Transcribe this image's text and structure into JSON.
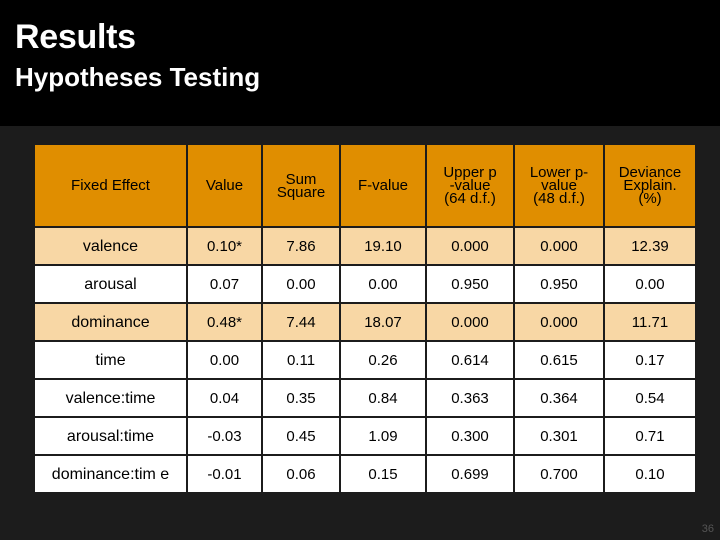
{
  "slide": {
    "title": "Results",
    "subtitle": "Hypotheses Testing",
    "page_number": "36"
  },
  "table": {
    "headers": [
      [
        "Fixed Effect"
      ],
      [
        "Value"
      ],
      [
        "Sum",
        "Square"
      ],
      [
        "F-value"
      ],
      [
        "Upper p",
        "-value",
        "(64 d.f.)"
      ],
      [
        "Lower p-",
        "value",
        "(48 d.f.)"
      ],
      [
        "Deviance",
        "Explain.",
        "(%)"
      ]
    ],
    "rows": [
      [
        "valence",
        "0.10*",
        "7.86",
        "19.10",
        "0.000",
        "0.000",
        "12.39"
      ],
      [
        "arousal",
        "0.07",
        "0.00",
        "0.00",
        "0.950",
        "0.950",
        "0.00"
      ],
      [
        "dominance",
        "0.48*",
        "7.44",
        "18.07",
        "0.000",
        "0.000",
        "11.71"
      ],
      [
        "time",
        "0.00",
        "0.11",
        "0.26",
        "0.614",
        "0.615",
        "0.17"
      ],
      [
        "valence:time",
        "0.04",
        "0.35",
        "0.84",
        "0.363",
        "0.364",
        "0.54"
      ],
      [
        "arousal:time",
        "-0.03",
        "0.45",
        "1.09",
        "0.300",
        "0.301",
        "0.71"
      ],
      [
        "dominance:tim e",
        "-0.01",
        "0.06",
        "0.15",
        "0.699",
        "0.700",
        "0.10"
      ]
    ]
  }
}
